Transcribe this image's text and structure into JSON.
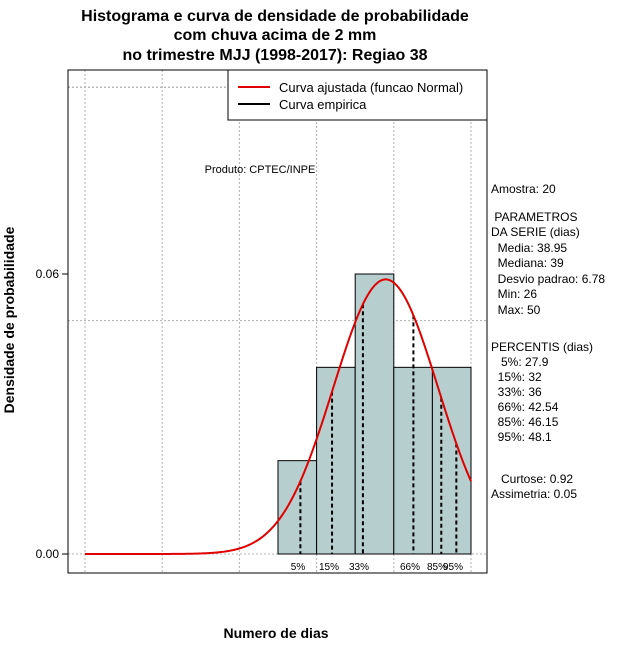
{
  "chart_data": {
    "type": "bar",
    "title": [
      "Histograma e curva de densidade de probabilidade",
      "com chuva acima de 2 mm",
      "no trimestre MJJ (1998-2017): Regiao 38"
    ],
    "xlabel": "Numero de dias",
    "ylabel": "Densidade de probabilidade",
    "xlim": [
      -1,
      52
    ],
    "ylim": [
      0,
      0.1
    ],
    "y_ticks": [
      0.0,
      0.06
    ],
    "y_tick_labels": [
      "0.00",
      "0.06"
    ],
    "grid": true,
    "legend_position": "top-right",
    "bins": [
      {
        "from": 25,
        "to": 30,
        "density": 0.02
      },
      {
        "from": 30,
        "to": 35,
        "density": 0.04
      },
      {
        "from": 35,
        "to": 40,
        "density": 0.06
      },
      {
        "from": 40,
        "to": 45,
        "density": 0.04
      },
      {
        "from": 45,
        "to": 50,
        "density": 0.04
      }
    ],
    "normal_curve": {
      "mean": 38.95,
      "sd": 6.78,
      "x_from": 0,
      "x_to": 50
    },
    "percentiles": [
      {
        "label": "5%",
        "value": 27.9
      },
      {
        "label": "15%",
        "value": 32
      },
      {
        "label": "33%",
        "value": 36
      },
      {
        "label": "66%",
        "value": 42.54
      },
      {
        "label": "85%",
        "value": 46.15
      },
      {
        "label": "95%",
        "value": 48.1
      }
    ],
    "legend": [
      {
        "label": "Curva ajustada (funcao Normal)",
        "color": "#e00000"
      },
      {
        "label": "Curva empirica",
        "color": "#000000"
      }
    ],
    "annotation": "Produto: CPTEC/INPE",
    "colors": {
      "bar_fill": "#b7cece",
      "curve": "#e00000",
      "grid": "#b0b0b0"
    }
  },
  "side_panel": {
    "sample": "Amostra: 20",
    "params_title_1": " PARAMETROS",
    "params_title_2": "DA SERIE (dias)",
    "params": [
      "  Media: 38.95",
      "  Mediana: 39",
      "  Desvio padrao: 6.78",
      "  Min: 26",
      "  Max: 50"
    ],
    "percentis_title": "PERCENTIS (dias)",
    "percentis": [
      "   5%: 27.9",
      "  15%: 32",
      "  33%: 36",
      "  66%: 42.54",
      "  85%: 46.15",
      "  95%: 48.1"
    ],
    "kurtosis": "   Curtose: 0.92",
    "skewness": "Assimetria: 0.05"
  }
}
